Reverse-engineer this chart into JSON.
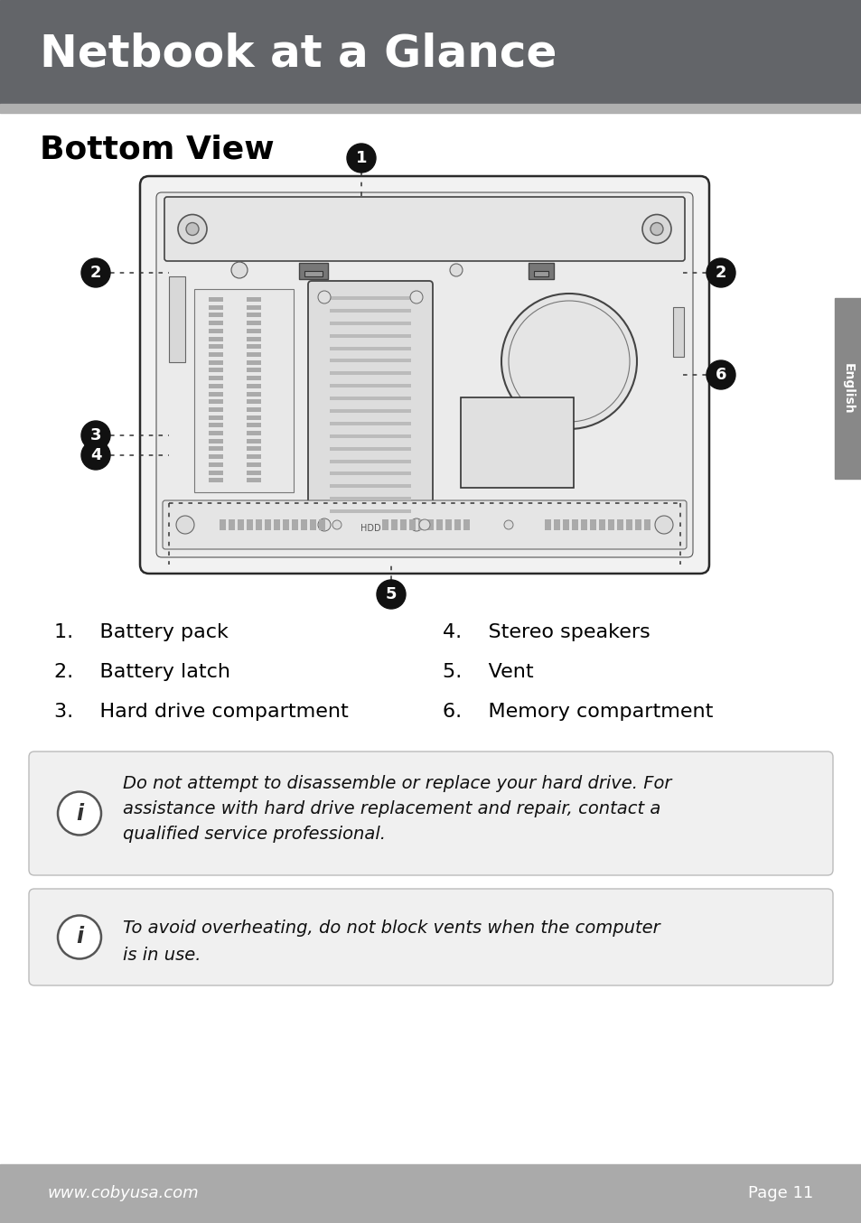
{
  "header_bg": "#636569",
  "header_text": "Netbook at a Glance",
  "header_text_color": "#ffffff",
  "accent_bar_color": "#b0b0b0",
  "footer_bg": "#aaaaaa",
  "footer_text_color": "#ffffff",
  "footer_left": "www.cobyusa.com",
  "footer_right": "Page 11",
  "section_title": "Bottom View",
  "section_title_color": "#000000",
  "sidebar_color": "#888888",
  "sidebar_text": "English",
  "bg_color": "#ffffff",
  "list_items_left": [
    "1.  Battery pack",
    "2.  Battery latch",
    "3.  Hard drive compartment"
  ],
  "list_items_right": [
    "4.  Stereo speakers",
    "5.  Vent",
    "6.  Memory compartment"
  ],
  "note1_line1": "Do not attempt to disassemble or replace your hard drive. For",
  "note1_line2": "assistance with hard drive replacement and repair, contact a",
  "note1_line3": "qualified service professional.",
  "note2_line1": "To avoid overheating, do not block vents when the computer",
  "note2_line2": "is in use."
}
